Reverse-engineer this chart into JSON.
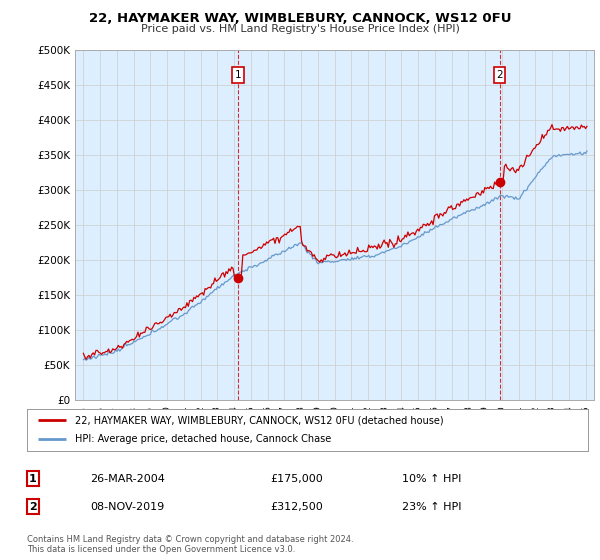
{
  "title": "22, HAYMAKER WAY, WIMBLEBURY, CANNOCK, WS12 0FU",
  "subtitle": "Price paid vs. HM Land Registry's House Price Index (HPI)",
  "ylabel_ticks": [
    "£0",
    "£50K",
    "£100K",
    "£150K",
    "£200K",
    "£250K",
    "£300K",
    "£350K",
    "£400K",
    "£450K",
    "£500K"
  ],
  "ytick_values": [
    0,
    50000,
    100000,
    150000,
    200000,
    250000,
    300000,
    350000,
    400000,
    450000,
    500000
  ],
  "ylim": [
    0,
    500000
  ],
  "xlim_start": 1994.5,
  "xlim_end": 2025.5,
  "red_line_color": "#cc0000",
  "blue_line_color": "#6699cc",
  "plot_bg_color": "#ddeeff",
  "marker1_x": 2004.23,
  "marker1_y": 175000,
  "marker2_x": 2019.86,
  "marker2_y": 312500,
  "legend_label_red": "22, HAYMAKER WAY, WIMBLEBURY, CANNOCK, WS12 0FU (detached house)",
  "legend_label_blue": "HPI: Average price, detached house, Cannock Chase",
  "table_rows": [
    {
      "num": "1",
      "date": "26-MAR-2004",
      "price": "£175,000",
      "hpi": "10% ↑ HPI"
    },
    {
      "num": "2",
      "date": "08-NOV-2019",
      "price": "£312,500",
      "hpi": "23% ↑ HPI"
    }
  ],
  "footnote": "Contains HM Land Registry data © Crown copyright and database right 2024.\nThis data is licensed under the Open Government Licence v3.0.",
  "background_color": "#ffffff",
  "grid_color": "#cccccc"
}
